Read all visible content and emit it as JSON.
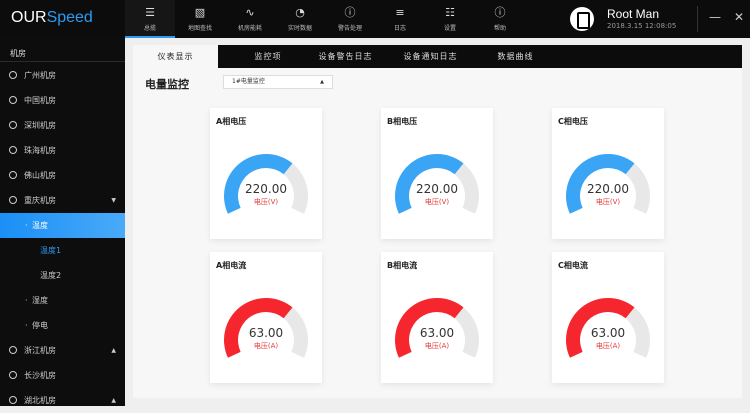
{
  "app": {
    "logo_a": "OUR",
    "logo_b": "Speed",
    "accent": "#2d9cf0"
  },
  "nav": [
    {
      "label": "总揽",
      "icon": "list-icon",
      "active": true
    },
    {
      "label": "地图查找",
      "icon": "map-icon"
    },
    {
      "label": "机房能耗",
      "icon": "pulse-icon"
    },
    {
      "label": "实时数据",
      "icon": "gauge-icon"
    },
    {
      "label": "警告处理",
      "icon": "alert-icon"
    },
    {
      "label": "日志",
      "icon": "log-icon"
    },
    {
      "label": "设置",
      "icon": "settings-icon"
    },
    {
      "label": "帮助",
      "icon": "info-icon"
    }
  ],
  "user": {
    "name": "Root Man",
    "time": "2018.3.15 12:08:05"
  },
  "sidebar": {
    "header": "机房",
    "items": [
      {
        "label": "广州机房"
      },
      {
        "label": "中国机房"
      },
      {
        "label": "深圳机房"
      },
      {
        "label": "珠海机房"
      },
      {
        "label": "佛山机房"
      },
      {
        "label": "重庆机房",
        "arrow": "▼"
      },
      {
        "label": "温度",
        "level": 1,
        "active": true
      },
      {
        "label": "温度1",
        "level": 2,
        "selected": true
      },
      {
        "label": "温度2",
        "level": 2
      },
      {
        "label": "湿度",
        "level": 1
      },
      {
        "label": "停电",
        "level": 1
      },
      {
        "label": "浙江机房",
        "arrow": "▲"
      },
      {
        "label": "长沙机房"
      },
      {
        "label": "湖北机房",
        "arrow": "▲"
      }
    ]
  },
  "tabs": [
    "仪表显示",
    "监控项",
    "设备警告日志",
    "设备通知日志",
    "数据曲线"
  ],
  "section": {
    "title": "电量监控",
    "select_value": "1#电量监控"
  },
  "gauges": [
    {
      "title": "A相电压",
      "value": "220.00",
      "unit": "电压(V)",
      "fill": 0.67,
      "color": "#3aa5f5"
    },
    {
      "title": "B相电压",
      "value": "220.00",
      "unit": "电压(V)",
      "fill": 0.67,
      "color": "#3aa5f5"
    },
    {
      "title": "C相电压",
      "value": "220.00",
      "unit": "电压(V)",
      "fill": 0.67,
      "color": "#3aa5f5"
    },
    {
      "title": "A相电流",
      "value": "63.00",
      "unit": "电压(A)",
      "fill": 0.67,
      "color": "#f5262e"
    },
    {
      "title": "B相电流",
      "value": "63.00",
      "unit": "电压(A)",
      "fill": 0.67,
      "color": "#f5262e"
    },
    {
      "title": "C相电流",
      "value": "63.00",
      "unit": "电压(A)",
      "fill": 0.67,
      "color": "#f5262e"
    }
  ]
}
